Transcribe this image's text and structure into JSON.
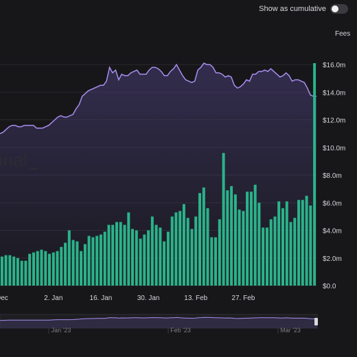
{
  "controls": {
    "cumulative_label": "Show as cumulative",
    "cumulative_on": false
  },
  "watermark": "inal_",
  "colors": {
    "background": "#17171a",
    "bar": "#2bb38a",
    "line": "#a98ff0",
    "area_top": "#4a3f78",
    "grid": "#2a2a2e",
    "text": "#d8d8dc"
  },
  "chart_data": [
    {
      "type": "bar",
      "series": [
        {
          "name": "",
          "values": [
            2.1,
            2.2,
            2.2,
            2.1,
            2.0,
            1.8,
            1.8,
            2.3,
            2.4,
            2.5,
            2.6,
            2.5,
            2.3,
            2.4,
            2.5,
            2.8,
            3.1,
            4.0,
            3.3,
            3.2,
            2.5,
            3.0,
            3.6,
            3.5,
            3.6,
            3.7,
            3.9,
            4.4,
            4.4,
            4.6,
            4.6,
            4.4,
            5.3,
            4.1,
            4.0,
            3.4,
            3.7,
            4.0,
            5.0,
            4.4,
            4.2,
            3.2,
            3.9,
            5.0,
            5.3,
            5.4,
            5.9,
            4.9,
            4.1,
            5.0,
            6.7,
            7.1,
            5.6,
            3.5,
            3.5,
            4.8,
            9.6,
            6.9,
            7.2,
            6.6,
            5.5,
            5.4,
            6.8,
            6.8,
            7.3,
            6.0,
            4.2,
            4.2,
            4.8,
            5.0,
            6.1,
            5.6,
            6.1,
            4.6,
            4.9,
            6.2,
            6.2,
            6.5,
            5.8,
            16.1
          ],
          "color": "#2bb38a"
        }
      ],
      "ylabel": "Fees",
      "y_ticks": [
        "$0.0",
        "$2.0m",
        "$4.0m",
        "$6.0m",
        "$8.0m",
        "$10.0m",
        "$12.0m",
        "$14.0m",
        "$16.0m"
      ],
      "ylim": [
        0,
        16.5
      ],
      "x_ticks": [
        "Dec",
        "2. Jan",
        "16. Jan",
        "30. Jan",
        "13. Feb",
        "27. Feb"
      ],
      "x_tick_index": [
        0,
        13,
        25,
        37,
        49,
        61
      ],
      "grid": true
    },
    {
      "type": "area",
      "series": [
        {
          "name": "",
          "values": [
            11.0,
            11.1,
            11.3,
            11.5,
            11.6,
            11.6,
            11.5,
            11.5,
            11.6,
            11.6,
            11.6,
            11.6,
            11.4,
            11.4,
            11.4,
            11.5,
            11.6,
            11.8,
            12.0,
            12.2,
            12.3,
            12.2,
            12.2,
            12.3,
            12.4,
            12.8,
            13.1,
            13.7,
            13.9,
            14.1,
            14.2,
            14.3,
            14.4,
            14.5,
            14.5,
            14.8,
            15.8,
            15.4,
            15.6,
            14.9,
            15.3,
            15.2,
            15.2,
            15.4,
            15.5,
            15.6,
            15.3,
            15.3,
            15.3,
            15.6,
            15.8,
            15.8,
            15.7,
            15.5,
            15.2,
            15.2,
            15.5,
            15.7,
            16.0,
            15.6,
            15.2,
            14.9,
            14.8,
            14.7,
            14.8,
            15.6,
            15.8,
            16.1,
            16.0,
            16.0,
            15.8,
            15.4,
            15.4,
            15.3,
            15.1,
            15.2,
            15.1,
            14.5,
            14.3,
            14.4,
            14.6,
            14.9,
            14.8,
            15.3,
            15.3,
            15.5,
            15.5,
            15.6,
            15.5,
            15.7,
            15.5,
            15.3,
            15.1,
            15.2,
            15.4,
            15.2,
            14.8,
            14.9,
            14.9,
            14.8,
            14.7,
            14.3,
            13.8,
            13.7,
            13.7
          ],
          "color": "#a98ff0"
        }
      ]
    }
  ],
  "navigator": {
    "labels": [
      "Jan '23",
      "Feb '23",
      "Mar '23"
    ]
  }
}
